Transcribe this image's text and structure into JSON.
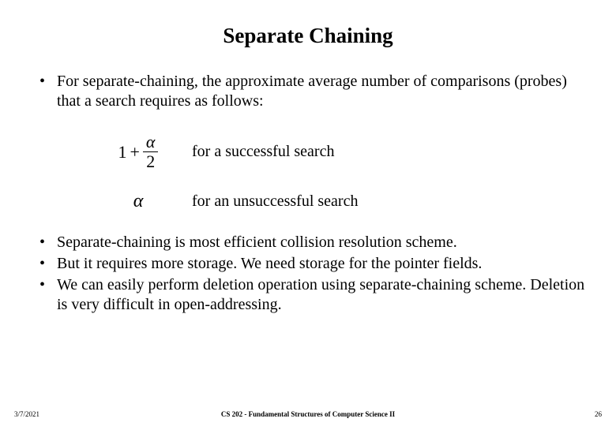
{
  "title": "Separate Chaining",
  "intro_bullet": "For separate-chaining, the approximate average number of comparisons (probes)  that a search requires as follows:",
  "formula1_prefix": "1",
  "formula1_plus": "+",
  "formula1_num": "α",
  "formula1_den": "2",
  "formula1_label": "for a successful search",
  "formula2_symbol": "α",
  "formula2_label": "for an unsuccessful search",
  "bullets2": {
    "b1": "Separate-chaining is most efficient collision resolution scheme.",
    "b2": "But it requires more storage. We need storage for the pointer fields.",
    "b3": "We can easily perform deletion operation using separate-chaining scheme. Deletion is very difficult in open-addressing."
  },
  "footer": {
    "date": "3/7/2021",
    "course": "CS 202 - Fundamental Structures of Computer Science II",
    "page": "26"
  },
  "colors": {
    "background": "#ffffff",
    "text": "#000000"
  }
}
